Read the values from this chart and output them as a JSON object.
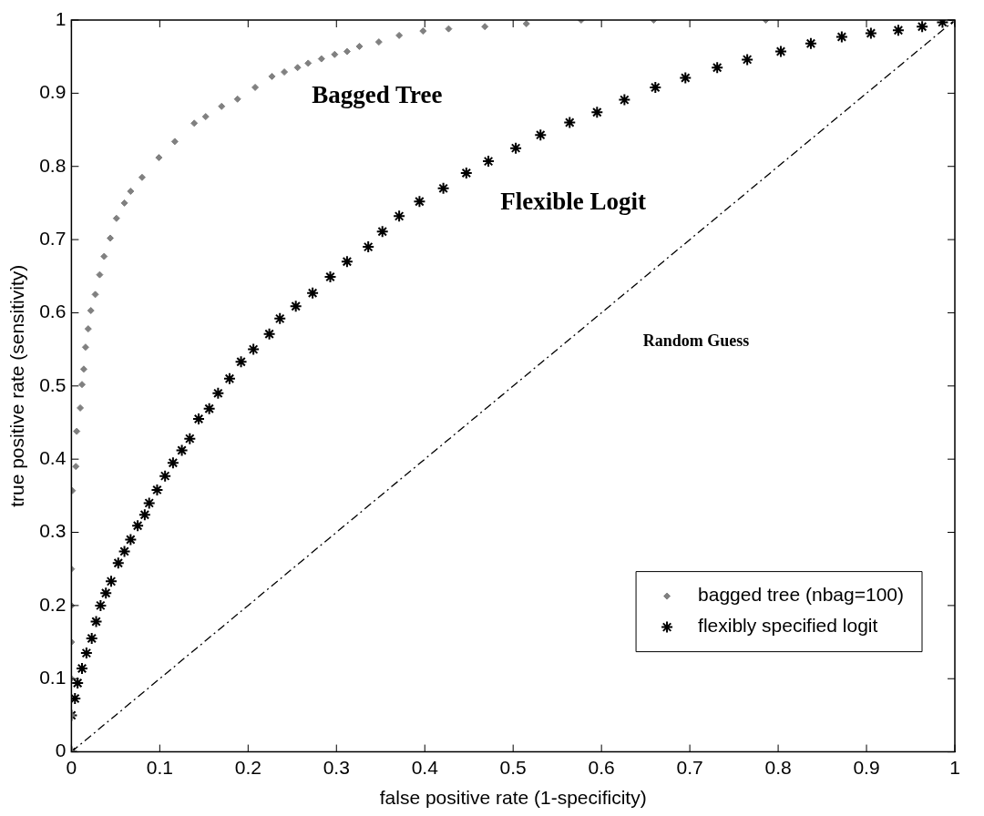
{
  "chart_data": {
    "type": "scatter",
    "xlabel": "false positive rate (1-specificity)",
    "ylabel": "true positive rate (sensitivity)",
    "xlim": [
      0,
      1
    ],
    "ylim": [
      0,
      1
    ],
    "xticks": [
      0,
      0.1,
      0.2,
      0.3,
      0.4,
      0.5,
      0.6,
      0.7,
      0.8,
      0.9,
      1
    ],
    "yticks": [
      0,
      0.1,
      0.2,
      0.3,
      0.4,
      0.5,
      0.6,
      0.7,
      0.8,
      0.9,
      1
    ],
    "grid": false,
    "legend": "bottom right",
    "series": [
      {
        "name": "bagged tree (nbag=100)",
        "color": "#808080",
        "marker": "diamond",
        "x": [
          0,
          0,
          0,
          0,
          0,
          0,
          0.001,
          0.005,
          0.006,
          0.01,
          0.012,
          0.014,
          0.016,
          0.019,
          0.022,
          0.027,
          0.032,
          0.037,
          0.044,
          0.051,
          0.06,
          0.067,
          0.08,
          0.099,
          0.117,
          0.139,
          0.152,
          0.17,
          0.188,
          0.208,
          0.227,
          0.241,
          0.256,
          0.268,
          0.283,
          0.298,
          0.312,
          0.326,
          0.348,
          0.371,
          0.398,
          0.427,
          0.468,
          0.515,
          0.577,
          0.659,
          0.786,
          1
        ],
        "values": [
          0,
          0.05,
          0.1,
          0.15,
          0.2,
          0.25,
          0.357,
          0.39,
          0.438,
          0.47,
          0.502,
          0.523,
          0.553,
          0.578,
          0.603,
          0.625,
          0.652,
          0.677,
          0.702,
          0.729,
          0.75,
          0.766,
          0.785,
          0.812,
          0.834,
          0.859,
          0.868,
          0.882,
          0.892,
          0.908,
          0.923,
          0.929,
          0.935,
          0.941,
          0.947,
          0.953,
          0.957,
          0.964,
          0.97,
          0.979,
          0.985,
          0.988,
          0.991,
          0.995,
          1,
          1,
          1,
          1
        ]
      },
      {
        "name": "flexibly specified logit",
        "color": "#000000",
        "marker": "cross",
        "x": [
          0,
          0,
          0.004,
          0.007,
          0.012,
          0.017,
          0.023,
          0.028,
          0.033,
          0.039,
          0.045,
          0.053,
          0.06,
          0.067,
          0.075,
          0.083,
          0.088,
          0.097,
          0.106,
          0.115,
          0.125,
          0.134,
          0.144,
          0.156,
          0.166,
          0.179,
          0.192,
          0.206,
          0.224,
          0.236,
          0.254,
          0.273,
          0.293,
          0.312,
          0.336,
          0.352,
          0.371,
          0.394,
          0.421,
          0.447,
          0.472,
          0.503,
          0.531,
          0.564,
          0.595,
          0.626,
          0.661,
          0.695,
          0.731,
          0.765,
          0.803,
          0.837,
          0.872,
          0.905,
          0.936,
          0.963,
          0.986,
          1
        ],
        "values": [
          0,
          0.05,
          0.073,
          0.094,
          0.114,
          0.135,
          0.155,
          0.178,
          0.2,
          0.217,
          0.233,
          0.258,
          0.274,
          0.29,
          0.309,
          0.324,
          0.34,
          0.358,
          0.377,
          0.395,
          0.412,
          0.428,
          0.455,
          0.469,
          0.49,
          0.51,
          0.533,
          0.55,
          0.571,
          0.592,
          0.609,
          0.627,
          0.649,
          0.67,
          0.69,
          0.711,
          0.732,
          0.752,
          0.77,
          0.791,
          0.807,
          0.825,
          0.843,
          0.86,
          0.874,
          0.891,
          0.908,
          0.921,
          0.935,
          0.946,
          0.957,
          0.968,
          0.977,
          0.982,
          0.986,
          0.991,
          0.997,
          1
        ]
      },
      {
        "type": "line",
        "color": "#000000",
        "marker": "none",
        "line_style": "dashed",
        "x": [
          0,
          1
        ],
        "values": [
          0,
          1
        ]
      }
    ],
    "annotations": [
      "Bagged Tree",
      "Flexible Logit",
      "Random Guess"
    ]
  }
}
